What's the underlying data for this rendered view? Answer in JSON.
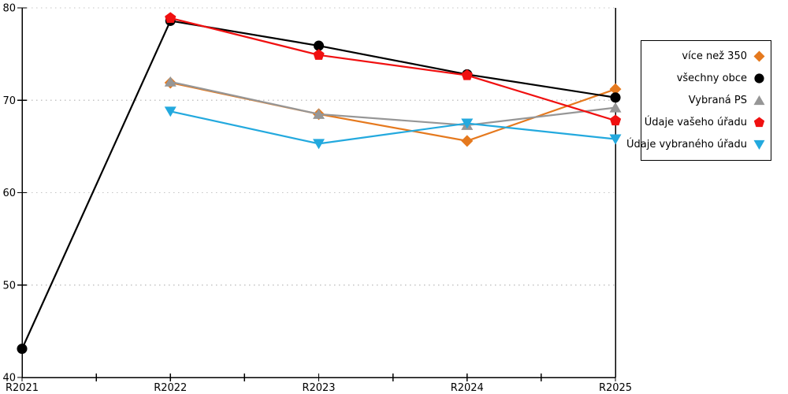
{
  "chart_data": {
    "type": "line",
    "title": "",
    "categories": [
      "R2021",
      "R2022",
      "R2023",
      "R2024",
      "R2025"
    ],
    "ylim": [
      40,
      80
    ],
    "yticks": [
      40,
      50,
      60,
      70,
      80
    ],
    "grid": "horizontal dotted gridlines at 50, 60, 70, 80",
    "x_minor_ticks_between_categories": true,
    "legend_position": "outside-right",
    "series": [
      {
        "name": "více než 350",
        "color": "#E5791E",
        "marker": "diamond",
        "values": [
          null,
          71.9,
          68.5,
          65.6,
          71.2
        ]
      },
      {
        "name": "všechny obce",
        "color": "#000000",
        "marker": "circle",
        "values": [
          43.1,
          78.6,
          75.9,
          72.8,
          70.3
        ]
      },
      {
        "name": "Vybraná PS",
        "color": "#969696",
        "marker": "triangle-up",
        "values": [
          null,
          72.0,
          68.5,
          67.3,
          69.2
        ]
      },
      {
        "name": "Údaje vašeho úřadu",
        "color": "#F01010",
        "marker": "pentagon",
        "values": [
          null,
          78.9,
          74.9,
          72.7,
          67.8
        ]
      },
      {
        "name": "Údaje vybraného úřadu",
        "color": "#23A9DE",
        "marker": "triangle-down",
        "values": [
          null,
          68.8,
          65.3,
          67.5,
          65.8
        ]
      }
    ]
  },
  "colors": {
    "background": "#ffffff",
    "axis": "#000000",
    "grid": "#c4c4c4",
    "legend_border": "#000000",
    "tick_label": "#000000"
  }
}
